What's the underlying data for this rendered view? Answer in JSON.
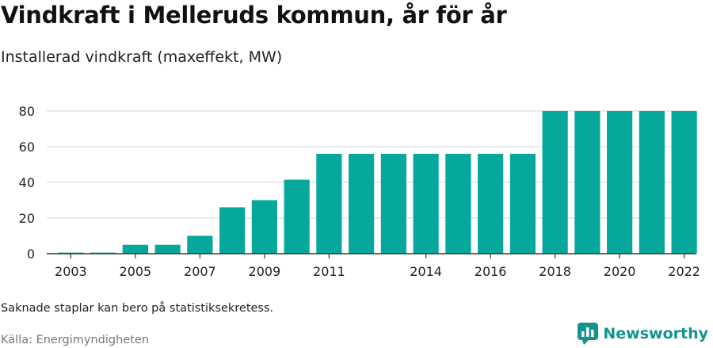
{
  "title": "Vindkraft i Melleruds kommun, år för år",
  "subtitle": "Installerad vindkraft (maxeffekt, MW)",
  "note": "Saknade staplar kan bero på statistiksekretess.",
  "source": "Källa: Energimyndigheten",
  "brand": {
    "name": "Newsworthy",
    "logo_icon": "bar-chart-logo-icon"
  },
  "colors": {
    "bar": "#05a89b",
    "axis": "#333333",
    "grid": "#dddddd",
    "brand": "#13938f"
  },
  "chart_data": {
    "type": "bar",
    "title": "Vindkraft i Melleruds kommun, år för år",
    "subtitle": "Installerad vindkraft (maxeffekt, MW)",
    "xlabel": "",
    "ylabel": "",
    "categories": [
      "2003",
      "2004",
      "2005",
      "2006",
      "2007",
      "2008",
      "2009",
      "2010",
      "2011",
      "2012",
      "2013",
      "2014",
      "2015",
      "2016",
      "2017",
      "2018",
      "2019",
      "2020",
      "2021",
      "2022"
    ],
    "values": [
      0.6,
      0.6,
      5,
      5,
      10,
      26,
      30,
      41.5,
      56,
      56,
      56,
      56,
      56,
      56,
      56,
      80,
      80,
      80,
      80,
      80
    ],
    "x_tick_labels": [
      "2003",
      "2005",
      "2007",
      "2009",
      "2011",
      "2014",
      "2016",
      "2018",
      "2020",
      "2022"
    ],
    "y_ticks": [
      0,
      20,
      40,
      60,
      80
    ],
    "ylim": [
      0,
      80
    ],
    "grid": true,
    "legend": "none"
  }
}
